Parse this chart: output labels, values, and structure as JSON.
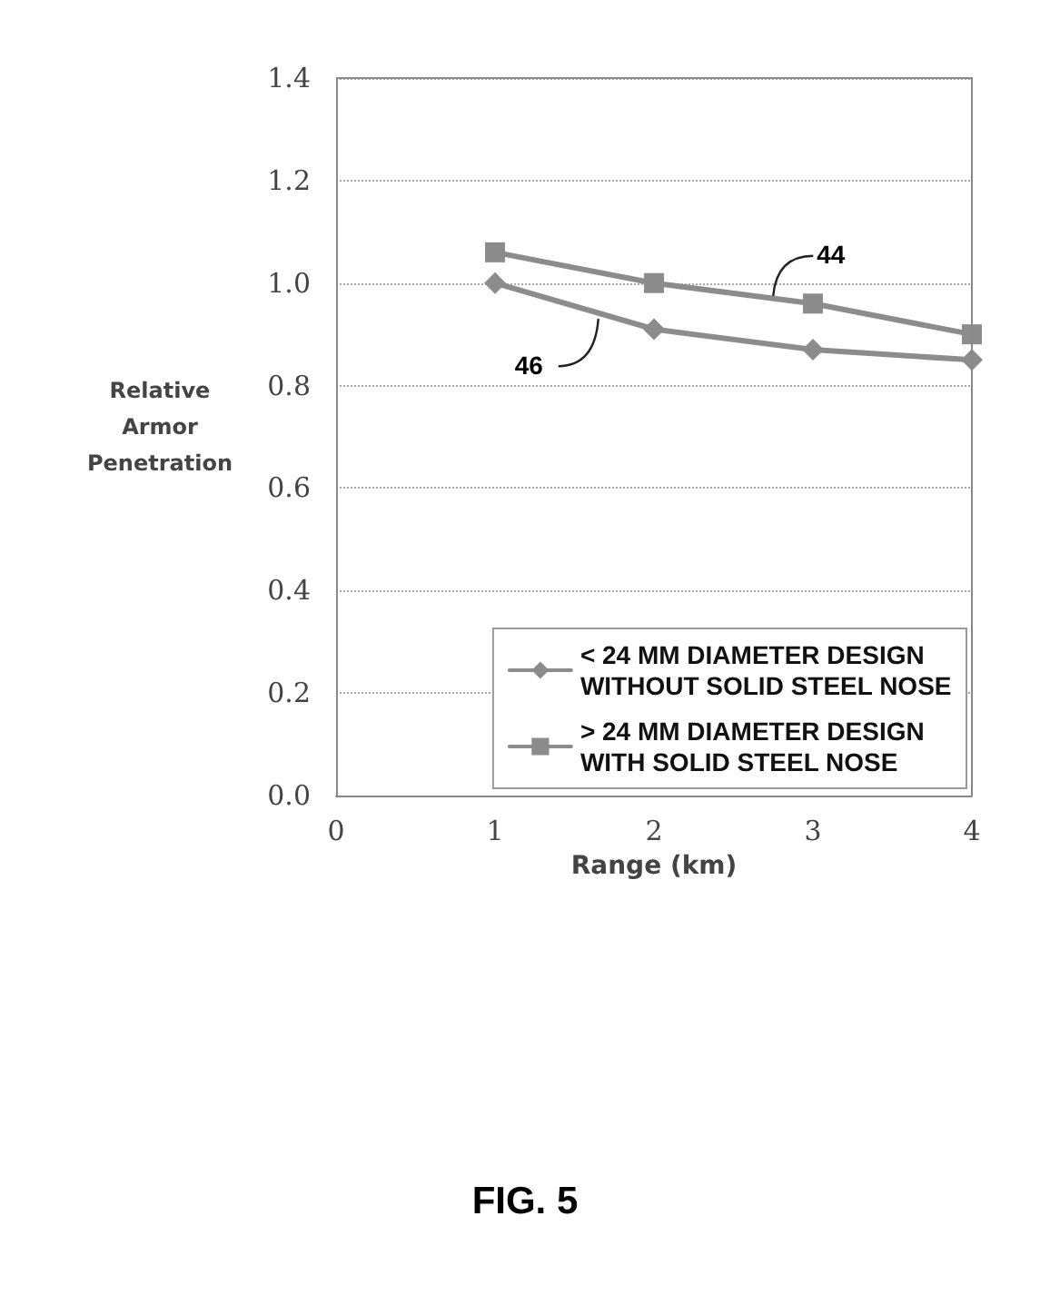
{
  "chart_data": {
    "type": "line",
    "xlabel": "Range (km)",
    "ylabel": "Relative Armor Penetration",
    "x": [
      1,
      2,
      3,
      4
    ],
    "series": [
      {
        "name": "< 24 MM DIAMETER DESIGN WITHOUT SOLID STEEL NOSE",
        "color": "#8c8c8c",
        "marker": "diamond",
        "values": [
          1.0,
          0.91,
          0.87,
          0.85
        ]
      },
      {
        "name": "> 24 MM DIAMETER DESIGN WITH SOLID STEEL NOSE",
        "color": "#8c8c8c",
        "marker": "square",
        "values": [
          1.06,
          1.0,
          0.96,
          0.9
        ]
      }
    ],
    "xlim": [
      0,
      4
    ],
    "xticks": [
      0,
      1,
      2,
      3,
      4
    ],
    "ylim": [
      0,
      1.4
    ],
    "yticks": [
      {
        "value": 0,
        "label": "0.0"
      },
      {
        "value": 0.2,
        "label": "0.2"
      },
      {
        "value": 0.4,
        "label": "0.4"
      },
      {
        "value": 0.6,
        "label": "0.6"
      },
      {
        "value": 0.8,
        "label": "0.8"
      },
      {
        "value": 1.0,
        "label": "1.0"
      },
      {
        "value": 1.2,
        "label": "1.2"
      },
      {
        "value": 1.4,
        "label": "1.4"
      }
    ],
    "grid": "y",
    "legend": "bottom right",
    "annotations": [
      {
        "text": "44",
        "x": 2.75,
        "y": 0.975
      },
      {
        "text": "46",
        "x": 1.65,
        "y": 0.93
      },
      "FIG. 5"
    ]
  }
}
